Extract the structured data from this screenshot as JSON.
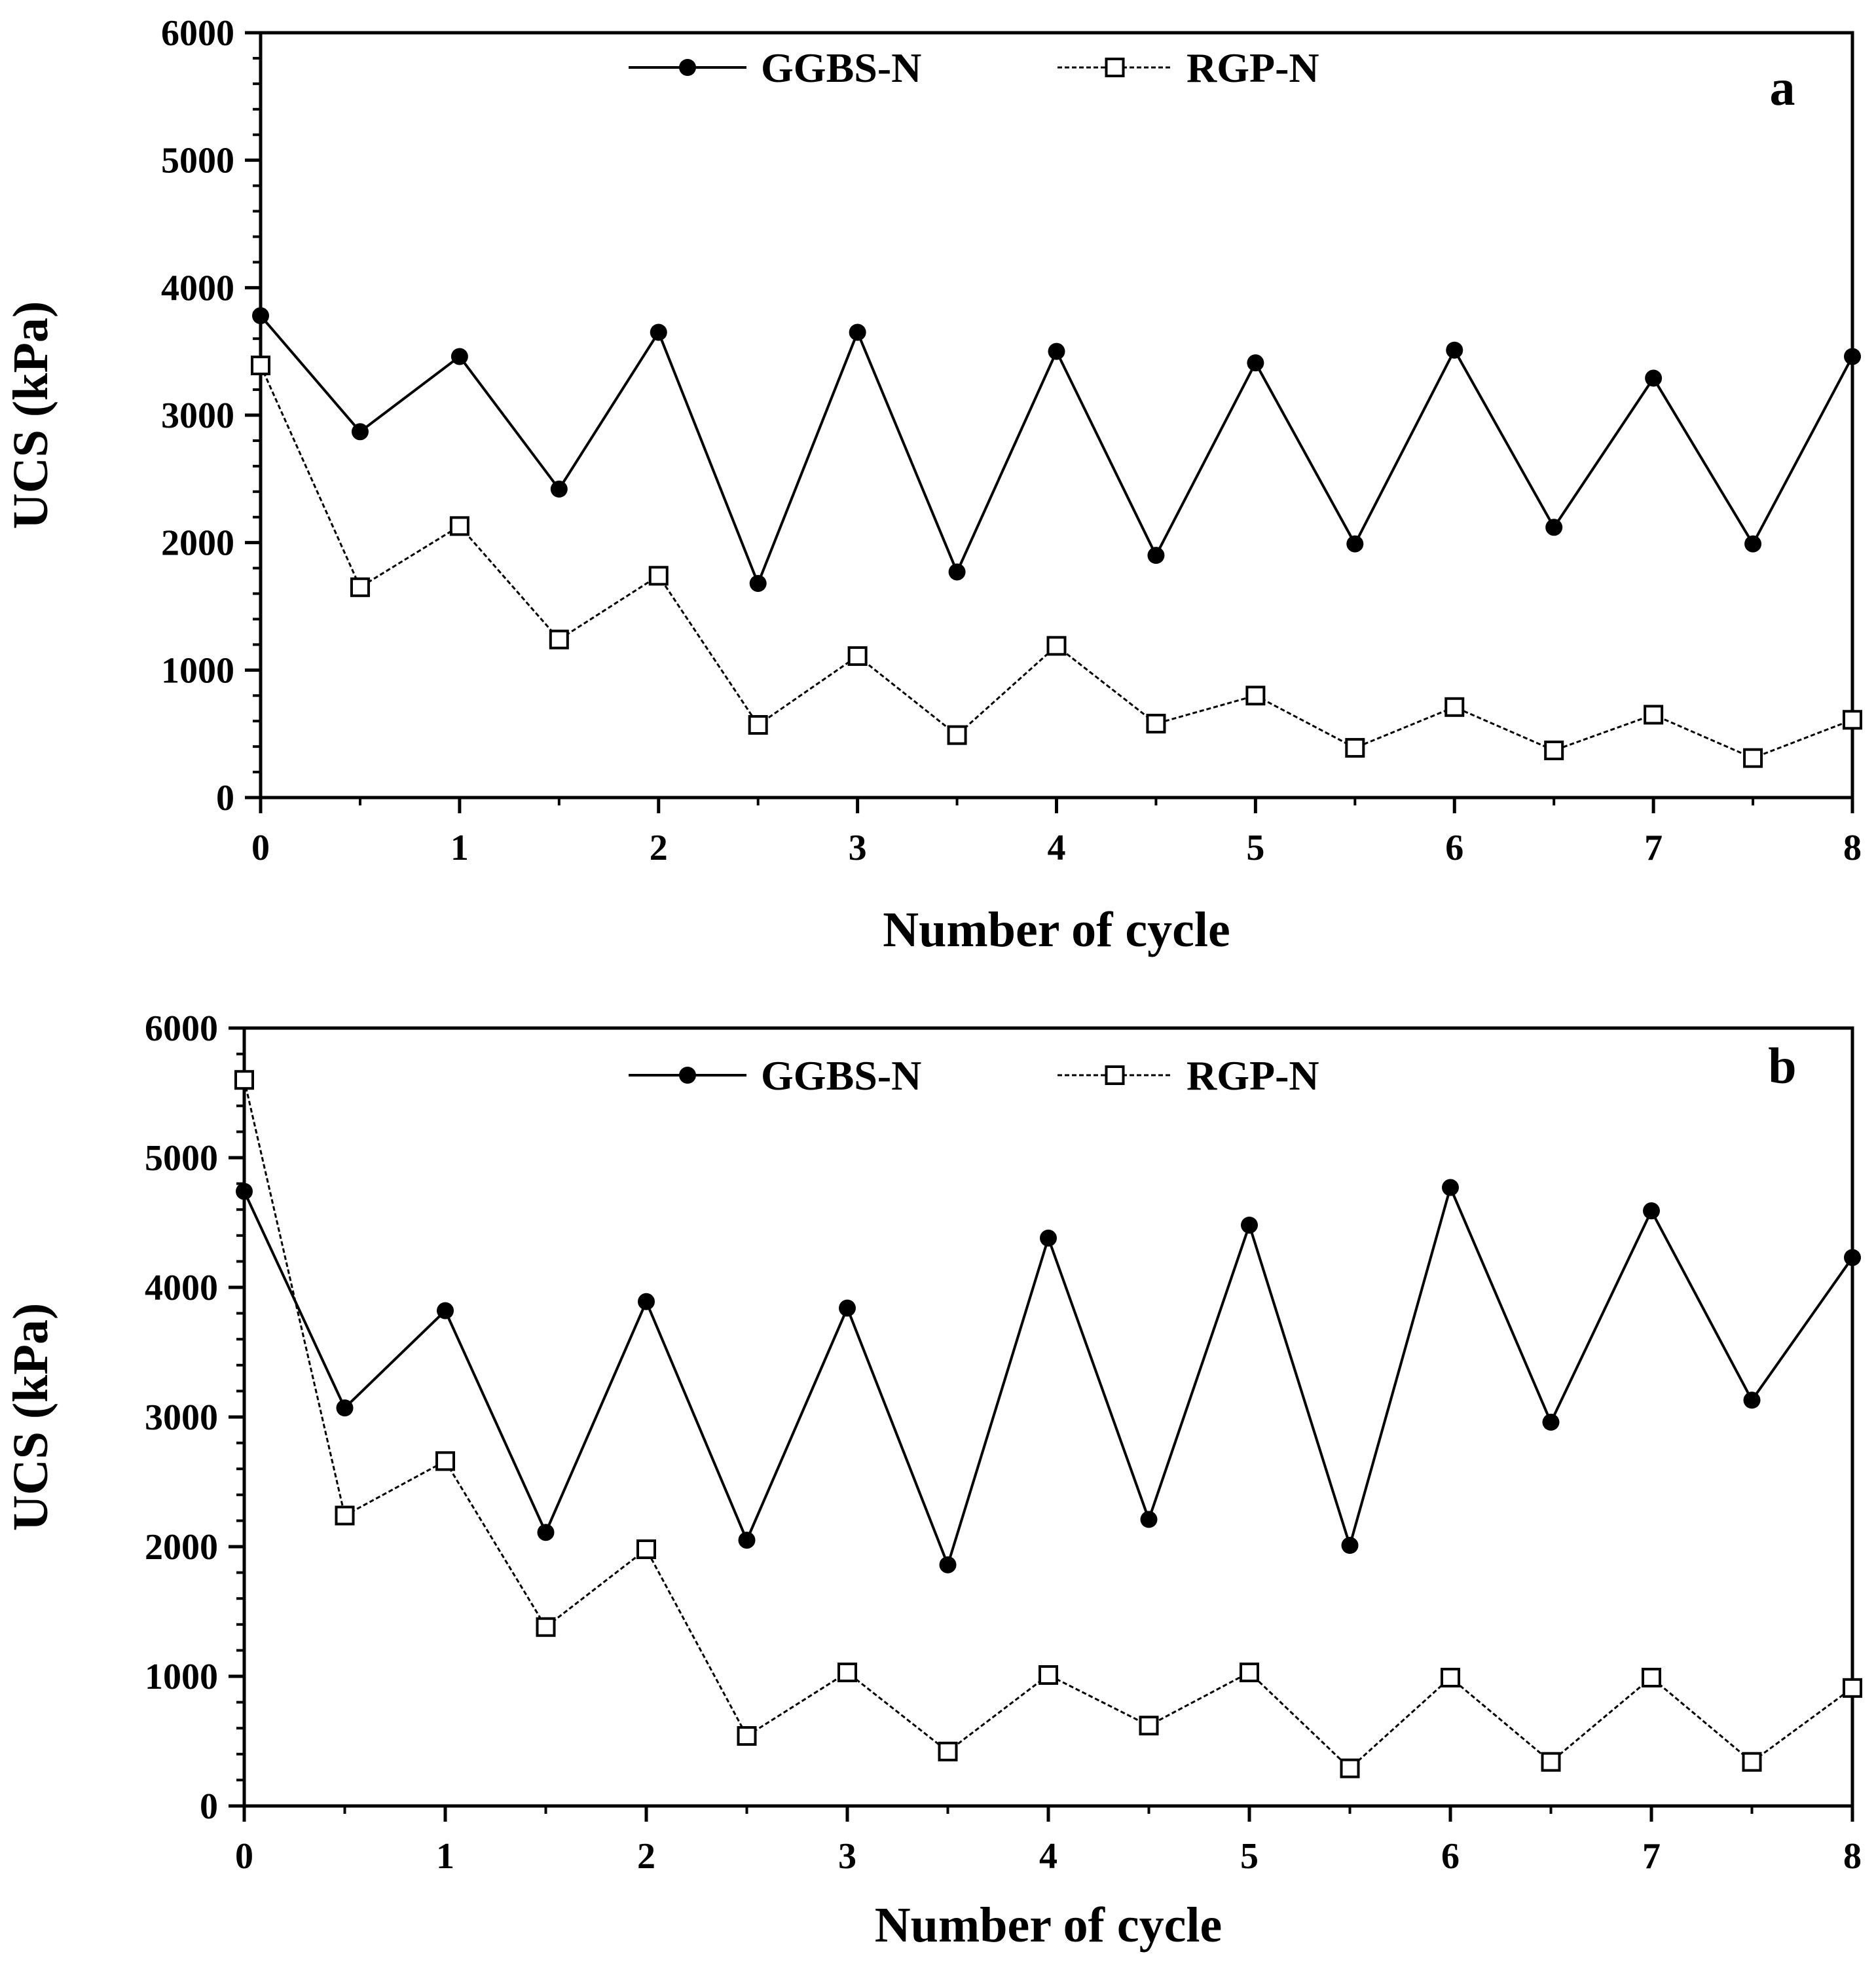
{
  "chart_data": [
    {
      "type": "line",
      "panel_label": "a",
      "xlabel": "Number of cycle",
      "ylabel": "UCS (kPa)",
      "xlim": [
        0,
        8
      ],
      "ylim": [
        0,
        6000
      ],
      "xticks": [
        0,
        1,
        2,
        3,
        4,
        5,
        6,
        7,
        8
      ],
      "yticks": [
        0,
        1000,
        2000,
        3000,
        4000,
        5000,
        6000
      ],
      "grid": false,
      "legend_position": "top-center",
      "x": [
        0,
        0.5,
        1,
        1.5,
        2,
        2.5,
        3,
        3.5,
        4,
        4.5,
        5,
        5.5,
        6,
        6.5,
        7,
        7.5,
        8
      ],
      "series": [
        {
          "name": "GGBS-N",
          "marker": "filled-circle",
          "line": "solid",
          "values": [
            3780,
            2870,
            3460,
            2420,
            3650,
            1680,
            3650,
            1770,
            3500,
            1900,
            3410,
            1990,
            3510,
            2120,
            3290,
            1990,
            3460
          ]
        },
        {
          "name": "RGP-N",
          "marker": "open-square",
          "line": "dashed",
          "values": [
            3390,
            1650,
            2130,
            1240,
            1740,
            570,
            1110,
            490,
            1190,
            580,
            800,
            390,
            710,
            370,
            650,
            310,
            610
          ]
        }
      ]
    },
    {
      "type": "line",
      "panel_label": "b",
      "xlabel": "Number of cycle",
      "ylabel": "UCS (kPa)",
      "xlim": [
        0,
        8
      ],
      "ylim": [
        0,
        6000
      ],
      "xticks": [
        0,
        1,
        2,
        3,
        4,
        5,
        6,
        7,
        8
      ],
      "yticks": [
        0,
        1000,
        2000,
        3000,
        4000,
        5000,
        6000
      ],
      "grid": false,
      "legend_position": "top-center",
      "x": [
        0,
        0.5,
        1,
        1.5,
        2,
        2.5,
        3,
        3.5,
        4,
        4.5,
        5,
        5.5,
        6,
        6.5,
        7,
        7.5,
        8
      ],
      "series": [
        {
          "name": "GGBS-N",
          "marker": "filled-circle",
          "line": "solid",
          "values": [
            4740,
            3070,
            3820,
            2110,
            3890,
            2050,
            3840,
            1860,
            4380,
            2210,
            4480,
            2010,
            4770,
            2960,
            4590,
            3130,
            4230
          ]
        },
        {
          "name": "RGP-N",
          "marker": "open-square",
          "line": "dashed",
          "values": [
            5600,
            2240,
            2660,
            1380,
            1980,
            540,
            1030,
            420,
            1010,
            620,
            1030,
            290,
            990,
            340,
            990,
            340,
            910
          ]
        }
      ]
    }
  ]
}
